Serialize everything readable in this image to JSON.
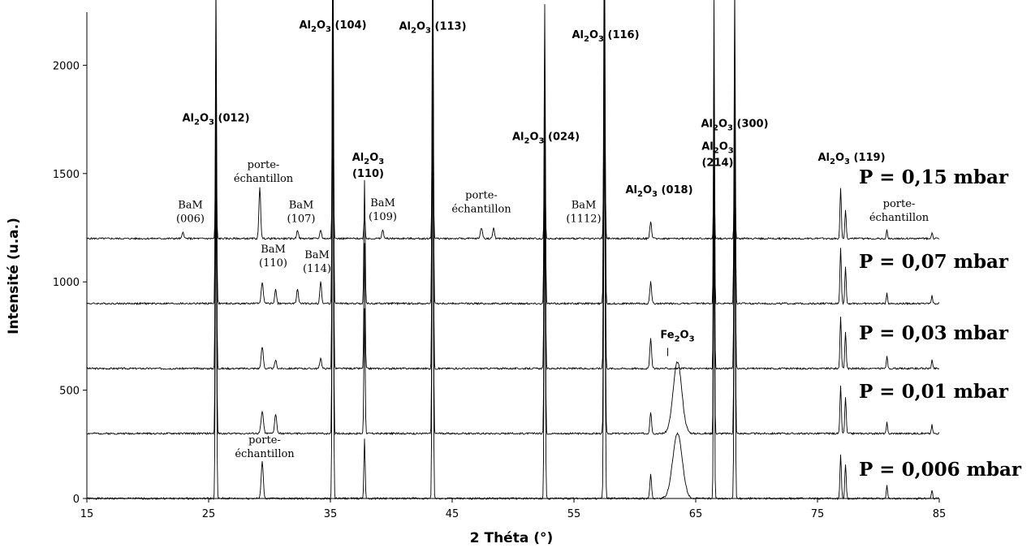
{
  "chart_data": {
    "type": "line",
    "xlabel": "2 Théta (°)",
    "ylabel": "Intensité (u.a.)",
    "xlim": [
      15,
      85
    ],
    "ylim": [
      0,
      2200
    ],
    "xticks": [
      "15",
      "25",
      "35",
      "45",
      "55",
      "65",
      "75",
      "85"
    ],
    "yticks": [
      "0",
      "500",
      "1000",
      "1500",
      "2000"
    ],
    "grid": false,
    "series": [
      {
        "name": "P = 0,006 mbar",
        "baseline": 0,
        "peaks": [
          {
            "x": 25.6,
            "h": 1600,
            "w": 0.07
          },
          {
            "x": 29.4,
            "h": 170,
            "w": 0.12
          },
          {
            "x": 35.2,
            "h": 2000,
            "w": 0.07
          },
          {
            "x": 37.8,
            "h": 280,
            "w": 0.07
          },
          {
            "x": 43.4,
            "h": 1980,
            "w": 0.07
          },
          {
            "x": 52.6,
            "h": 1420,
            "w": 0.07
          },
          {
            "x": 57.5,
            "h": 1900,
            "w": 0.08
          },
          {
            "x": 61.3,
            "h": 110,
            "w": 0.1
          },
          {
            "x": 63.5,
            "h": 300,
            "w": 0.55
          },
          {
            "x": 66.5,
            "h": 1450,
            "w": 0.06
          },
          {
            "x": 68.2,
            "h": 1500,
            "w": 0.07
          },
          {
            "x": 76.9,
            "h": 200,
            "w": 0.08
          },
          {
            "x": 77.3,
            "h": 160,
            "w": 0.08
          },
          {
            "x": 80.7,
            "h": 60,
            "w": 0.07
          },
          {
            "x": 84.4,
            "h": 40,
            "w": 0.07
          }
        ]
      },
      {
        "name": "P = 0,01 mbar",
        "baseline": 300,
        "peaks": [
          {
            "x": 25.6,
            "h": 1550,
            "w": 0.07
          },
          {
            "x": 29.4,
            "h": 100,
            "w": 0.14
          },
          {
            "x": 30.5,
            "h": 90,
            "w": 0.12
          },
          {
            "x": 35.2,
            "h": 1950,
            "w": 0.07
          },
          {
            "x": 37.8,
            "h": 580,
            "w": 0.07
          },
          {
            "x": 43.4,
            "h": 1900,
            "w": 0.07
          },
          {
            "x": 52.6,
            "h": 1400,
            "w": 0.07
          },
          {
            "x": 57.5,
            "h": 1850,
            "w": 0.08
          },
          {
            "x": 61.3,
            "h": 100,
            "w": 0.1
          },
          {
            "x": 63.5,
            "h": 330,
            "w": 0.5
          },
          {
            "x": 66.5,
            "h": 1420,
            "w": 0.06
          },
          {
            "x": 68.2,
            "h": 1480,
            "w": 0.07
          },
          {
            "x": 76.9,
            "h": 220,
            "w": 0.08
          },
          {
            "x": 77.3,
            "h": 170,
            "w": 0.08
          },
          {
            "x": 80.7,
            "h": 50,
            "w": 0.07
          },
          {
            "x": 84.4,
            "h": 40,
            "w": 0.07
          }
        ]
      },
      {
        "name": "P = 0,03 mbar",
        "baseline": 600,
        "peaks": [
          {
            "x": 25.6,
            "h": 1500,
            "w": 0.07
          },
          {
            "x": 29.4,
            "h": 100,
            "w": 0.12
          },
          {
            "x": 30.5,
            "h": 40,
            "w": 0.1
          },
          {
            "x": 34.2,
            "h": 50,
            "w": 0.1
          },
          {
            "x": 35.2,
            "h": 1950,
            "w": 0.07
          },
          {
            "x": 37.8,
            "h": 580,
            "w": 0.07
          },
          {
            "x": 43.4,
            "h": 1900,
            "w": 0.07
          },
          {
            "x": 52.6,
            "h": 1380,
            "w": 0.07
          },
          {
            "x": 57.5,
            "h": 1850,
            "w": 0.08
          },
          {
            "x": 61.3,
            "h": 140,
            "w": 0.1
          },
          {
            "x": 66.5,
            "h": 1420,
            "w": 0.06
          },
          {
            "x": 68.2,
            "h": 1480,
            "w": 0.07
          },
          {
            "x": 76.9,
            "h": 240,
            "w": 0.08
          },
          {
            "x": 77.3,
            "h": 170,
            "w": 0.08
          },
          {
            "x": 80.7,
            "h": 60,
            "w": 0.07
          },
          {
            "x": 84.4,
            "h": 40,
            "w": 0.07
          }
        ]
      },
      {
        "name": "P = 0,07 mbar",
        "baseline": 900,
        "peaks": [
          {
            "x": 25.6,
            "h": 1500,
            "w": 0.07
          },
          {
            "x": 29.4,
            "h": 100,
            "w": 0.12
          },
          {
            "x": 30.5,
            "h": 70,
            "w": 0.1
          },
          {
            "x": 32.3,
            "h": 70,
            "w": 0.1
          },
          {
            "x": 34.2,
            "h": 100,
            "w": 0.1
          },
          {
            "x": 35.2,
            "h": 1900,
            "w": 0.07
          },
          {
            "x": 37.8,
            "h": 570,
            "w": 0.07
          },
          {
            "x": 43.4,
            "h": 1880,
            "w": 0.07
          },
          {
            "x": 52.6,
            "h": 1380,
            "w": 0.07
          },
          {
            "x": 57.5,
            "h": 1850,
            "w": 0.08
          },
          {
            "x": 61.3,
            "h": 100,
            "w": 0.1
          },
          {
            "x": 66.5,
            "h": 1420,
            "w": 0.06
          },
          {
            "x": 68.2,
            "h": 1480,
            "w": 0.07
          },
          {
            "x": 76.9,
            "h": 260,
            "w": 0.08
          },
          {
            "x": 77.3,
            "h": 170,
            "w": 0.08
          },
          {
            "x": 80.7,
            "h": 50,
            "w": 0.07
          },
          {
            "x": 84.4,
            "h": 40,
            "w": 0.07
          }
        ]
      },
      {
        "name": "P = 0,15 mbar",
        "baseline": 1200,
        "peaks": [
          {
            "x": 22.9,
            "h": 30,
            "w": 0.1
          },
          {
            "x": 25.6,
            "h": 450,
            "w": 0.07
          },
          {
            "x": 29.2,
            "h": 240,
            "w": 0.1
          },
          {
            "x": 32.3,
            "h": 40,
            "w": 0.1
          },
          {
            "x": 34.2,
            "h": 40,
            "w": 0.1
          },
          {
            "x": 35.2,
            "h": 890,
            "w": 0.07
          },
          {
            "x": 37.8,
            "h": 120,
            "w": 0.07
          },
          {
            "x": 39.3,
            "h": 40,
            "w": 0.1
          },
          {
            "x": 43.4,
            "h": 870,
            "w": 0.07
          },
          {
            "x": 47.4,
            "h": 50,
            "w": 0.12
          },
          {
            "x": 48.4,
            "h": 50,
            "w": 0.1
          },
          {
            "x": 52.6,
            "h": 360,
            "w": 0.07
          },
          {
            "x": 57.5,
            "h": 850,
            "w": 0.08
          },
          {
            "x": 61.3,
            "h": 80,
            "w": 0.1
          },
          {
            "x": 66.5,
            "h": 350,
            "w": 0.06
          },
          {
            "x": 68.2,
            "h": 360,
            "w": 0.07
          },
          {
            "x": 76.9,
            "h": 230,
            "w": 0.08
          },
          {
            "x": 77.3,
            "h": 130,
            "w": 0.08
          },
          {
            "x": 80.7,
            "h": 40,
            "w": 0.07
          },
          {
            "x": 84.4,
            "h": 30,
            "w": 0.07
          }
        ]
      }
    ],
    "annotations": [
      {
        "id": "al2o3-104",
        "type": "al2o3",
        "hkl": "(104)",
        "x": 35.2,
        "y": 2170
      },
      {
        "id": "al2o3-113",
        "type": "al2o3",
        "hkl": "(113)",
        "x": 43.4,
        "y": 2165
      },
      {
        "id": "al2o3-116",
        "type": "al2o3",
        "hkl": "(116)",
        "x": 57.6,
        "y": 2125
      },
      {
        "id": "al2o3-012",
        "type": "al2o3",
        "hkl": "(012)",
        "x": 25.6,
        "y": 1740
      },
      {
        "id": "al2o3-024",
        "type": "al2o3",
        "hkl": "(024)",
        "x": 52.7,
        "y": 1655
      },
      {
        "id": "al2o3-300",
        "type": "al2o3",
        "hkl": "(300)",
        "x": 68.2,
        "y": 1715
      },
      {
        "id": "al2o3-214",
        "type": "al2o3-stack",
        "hkl": "(214)",
        "x": 66.8,
        "y": 1610
      },
      {
        "id": "al2o3-110",
        "type": "al2o3-stack",
        "hkl": "(110)",
        "x": 38.1,
        "y": 1560
      },
      {
        "id": "al2o3-119",
        "type": "al2o3",
        "hkl": "(119)",
        "x": 77.8,
        "y": 1560
      },
      {
        "id": "al2o3-018",
        "type": "al2o3",
        "hkl": "(018)",
        "x": 62.0,
        "y": 1410
      },
      {
        "id": "fe2o3",
        "type": "fe2o3",
        "x": 63.5,
        "y": 740
      },
      {
        "id": "porte-1",
        "type": "text2",
        "line1": "porte-",
        "line2": "échantillon",
        "x": 29.5,
        "y": 1525
      },
      {
        "id": "porte-2",
        "type": "text2",
        "line1": "porte-",
        "line2": "échantillon",
        "x": 47.4,
        "y": 1385
      },
      {
        "id": "porte-3",
        "type": "text2",
        "line1": "porte-",
        "line2": "échantillon",
        "x": 81.7,
        "y": 1345
      },
      {
        "id": "porte-4",
        "type": "text2",
        "line1": "porte-",
        "line2": "échantillon",
        "x": 29.6,
        "y": 255
      },
      {
        "id": "bam-006",
        "type": "text2",
        "line1": "BaM",
        "line2": "(006)",
        "x": 23.5,
        "y": 1340
      },
      {
        "id": "bam-107",
        "type": "text2",
        "line1": "BaM",
        "line2": "(107)",
        "x": 32.6,
        "y": 1340
      },
      {
        "id": "bam-109",
        "type": "text2",
        "line1": "BaM",
        "line2": "(109)",
        "x": 39.3,
        "y": 1350
      },
      {
        "id": "bam-1112",
        "type": "text2",
        "line1": "BaM",
        "line2": "(1112)",
        "x": 55.8,
        "y": 1340
      },
      {
        "id": "bam-110",
        "type": "text2",
        "line1": "BaM",
        "line2": "(110)",
        "x": 30.3,
        "y": 1135
      },
      {
        "id": "bam-114",
        "type": "text2",
        "line1": "BaM",
        "line2": "(114)",
        "x": 33.9,
        "y": 1110
      }
    ]
  },
  "labels": {
    "p015": "P = 0,15 mbar",
    "p007": "P = 0,07 mbar",
    "p003": "P = 0,03 mbar",
    "p001": "P = 0,01 mbar",
    "p0006": "P = 0,006 mbar",
    "al": "Al",
    "o": "O",
    "sub2": "2",
    "sub3": "3",
    "fe": "Fe",
    "al2o3_110_hkl": "(110)",
    "al2o3_214_hkl": "(214)"
  }
}
